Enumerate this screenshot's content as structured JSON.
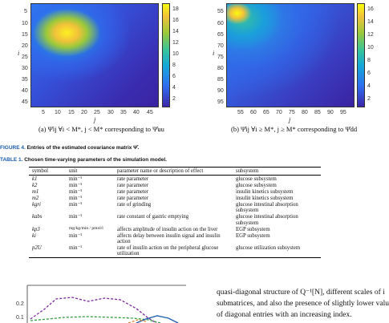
{
  "heatmap_left": {
    "y_axis_label": "i",
    "x_axis_label": "j",
    "x_ticks": [
      "5",
      "10",
      "15",
      "20",
      "25",
      "30",
      "35",
      "40",
      "45"
    ],
    "y_ticks": [
      "5",
      "10",
      "15",
      "20",
      "25",
      "30",
      "35",
      "40",
      "45"
    ],
    "colorbar_ticks": [
      "18",
      "16",
      "14",
      "12",
      "10",
      "8",
      "6",
      "4",
      "2"
    ],
    "caption": "(a) Ψ̂ij ∀i < M*, j < M* corresponding to Ψ̂uu"
  },
  "heatmap_right": {
    "y_axis_label": "i",
    "x_axis_label": "j",
    "x_ticks": [
      "55",
      "60",
      "65",
      "70",
      "75",
      "80",
      "85",
      "90",
      "95"
    ],
    "y_ticks": [
      "55",
      "60",
      "65",
      "70",
      "75",
      "80",
      "85",
      "90",
      "95"
    ],
    "colorbar_ticks": [
      "16",
      "14",
      "12",
      "10",
      "8",
      "6",
      "4",
      "2"
    ],
    "caption": "(b) Ψ̂ij ∀i ≥ M*, j ≥ M* corresponding to Ψ̂dd"
  },
  "figure_caption": {
    "label": "FIGURE 4.",
    "text": "Entries of the estimated covariance matrix Ψ̂."
  },
  "table_caption": {
    "label": "TABLE 1.",
    "text": "Chosen time-varying parameters of the simulation model."
  },
  "table": {
    "headers": [
      "symbol",
      "unit",
      "parameter name or description of effect",
      "subsystem"
    ],
    "rows": [
      {
        "symbol": "k1",
        "unit": "min⁻¹",
        "desc": "rate parameter",
        "sub": "glucose subsystem"
      },
      {
        "symbol": "k2",
        "unit": "min⁻¹",
        "desc": "rate parameter",
        "sub": "glucose subsystem"
      },
      {
        "symbol": "m1",
        "unit": "min⁻¹",
        "desc": "rate parameter",
        "sub": "insulin kinetics subsystem"
      },
      {
        "symbol": "m2",
        "unit": "min⁻¹",
        "desc": "rate parameter",
        "sub": "insulin kinetics subsystem"
      },
      {
        "symbol": "kgri",
        "unit": "min⁻¹",
        "desc": "rate of grinding",
        "sub": "glucose intestinal absorption subsystem"
      },
      {
        "symbol": "kabs",
        "unit": "min⁻¹",
        "desc": "rate constant of gastric emptying",
        "sub": "glucose intestinal absorption subsystem"
      },
      {
        "symbol": "kp3",
        "unit": "mg/kg/min / pmol/l",
        "desc": "affects amplitude of insulin action on the liver",
        "sub": "EGP subsystem"
      },
      {
        "symbol": "ki",
        "unit": "min⁻¹",
        "desc": "affects delay between insulin signal and insulin action",
        "sub": "EGP subsystem"
      },
      {
        "symbol": "p2U",
        "unit": "min⁻¹",
        "desc": "rate of insulin action on the peripheral glucose utilization",
        "sub": "glucose utilization subsystem"
      }
    ]
  },
  "bottom_plot": {
    "y_ticks": [
      "0.2",
      "0.1"
    ]
  },
  "body_text": {
    "line1": "quasi-diagonal structure of Q⁻¹[N], different scales of i",
    "line2": "submatrices, and also the presence of slightly lower valu",
    "line3": "of diagonal entries with an increasing index."
  }
}
